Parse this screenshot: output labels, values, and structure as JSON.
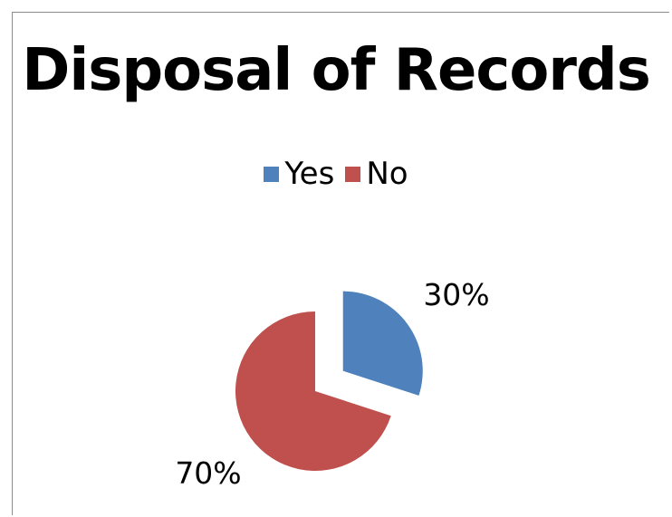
{
  "chart_data": {
    "type": "pie",
    "title": "Disposal of Records",
    "categories": [
      "Yes",
      "No"
    ],
    "values": [
      30,
      70
    ],
    "data_labels": [
      "30%",
      "70%"
    ],
    "colors": [
      "#4f81bd",
      "#c0504d"
    ],
    "exploded": [
      "Yes"
    ],
    "legend_position": "top"
  }
}
